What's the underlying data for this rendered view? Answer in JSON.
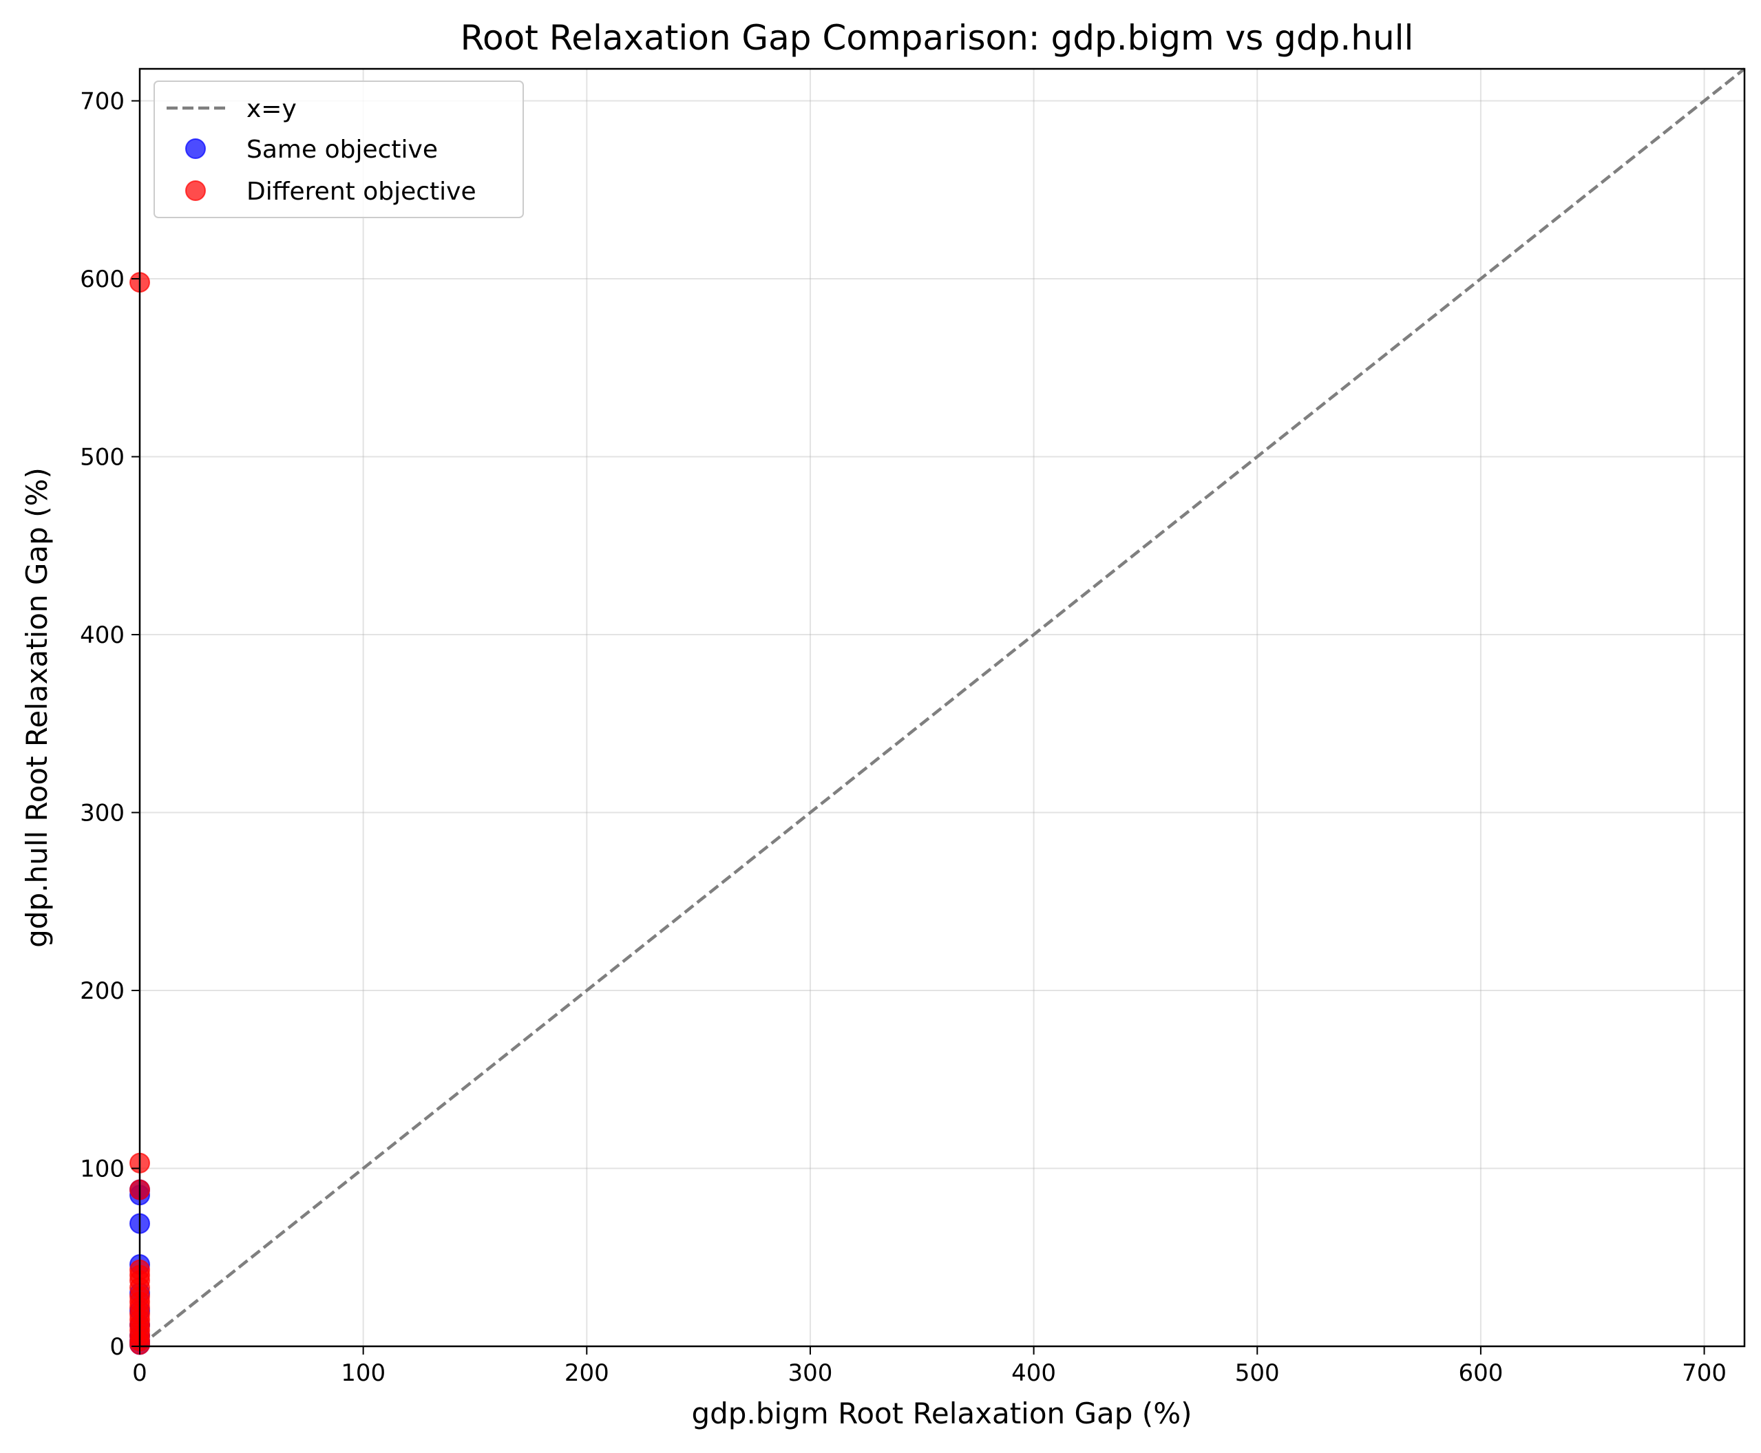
{
  "chart_data": {
    "type": "scatter",
    "title": "Root Relaxation Gap Comparison: gdp.bigm vs gdp.hull",
    "xlabel": "gdp.bigm Root Relaxation Gap (%)",
    "ylabel": "gdp.hull Root Relaxation Gap (%)",
    "xlim": [
      0,
      718
    ],
    "ylim": [
      0,
      718
    ],
    "xticks": [
      0,
      100,
      200,
      300,
      400,
      500,
      600,
      700
    ],
    "yticks": [
      0,
      100,
      200,
      300,
      400,
      500,
      600,
      700
    ],
    "grid": true,
    "legend_position": "top-left",
    "reference_line": {
      "label": "x=y",
      "style": "dashed",
      "color": "#7f7f7f"
    },
    "series": [
      {
        "name": "Same objective",
        "color": "#0000ff",
        "x": [
          0,
          0,
          0,
          0,
          0,
          0,
          0,
          0,
          0,
          0
        ],
        "y": [
          85,
          88,
          69,
          46,
          30,
          20,
          12,
          6,
          3,
          1
        ]
      },
      {
        "name": "Different objective",
        "color": "#ff0000",
        "x": [
          0,
          0,
          0,
          0,
          0,
          0,
          0,
          0,
          0,
          0,
          0,
          0,
          0,
          0,
          0,
          0,
          0
        ],
        "y": [
          598,
          103,
          88,
          43,
          40,
          37,
          33,
          28,
          25,
          22,
          18,
          15,
          12,
          9,
          6,
          3,
          1
        ]
      }
    ]
  }
}
